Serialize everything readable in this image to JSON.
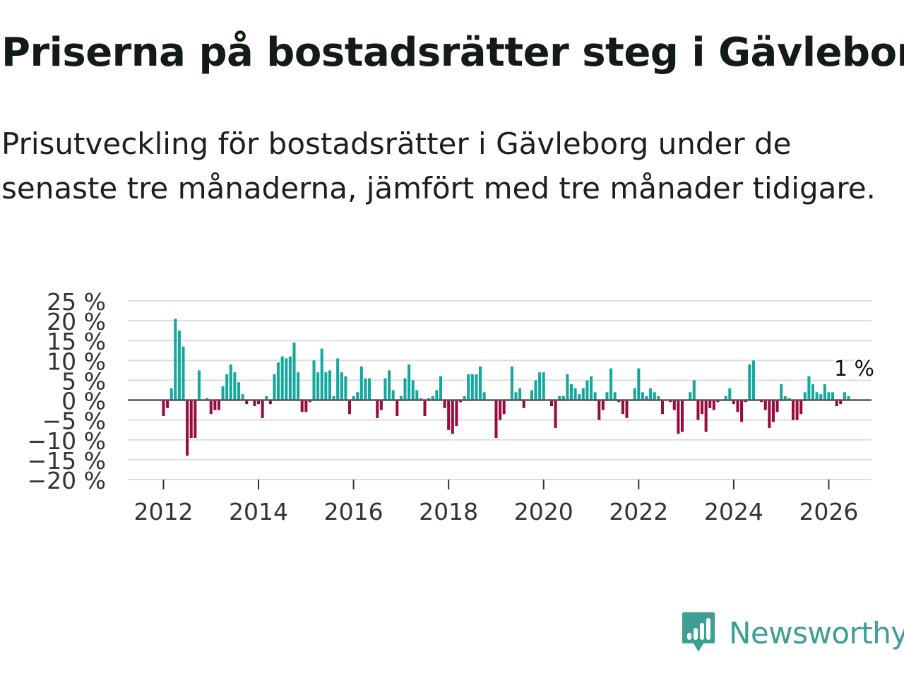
{
  "title": "Priserna på bostadsrätter steg i Gävleborg",
  "subtitle": "Prisutveckling för bostadsrätter i Gävleborg under de senaste tre månaderna, jämfört med tre månader tidigare.",
  "brand": {
    "name": "Newsworthy",
    "color": "#3d9e94"
  },
  "colors": {
    "positive": "#13a89e",
    "negative": "#990a3e",
    "grid": "#dddddd",
    "zero_line": "#555555"
  },
  "chart_data": {
    "type": "bar",
    "title": "Priserna på bostadsrätter steg i Gävleborg",
    "xlabel": "",
    "ylabel": "",
    "ylim": [
      -20,
      25
    ],
    "xlim": [
      2011.25,
      2026.9
    ],
    "y_ticks": [
      -20,
      -15,
      -10,
      -5,
      0,
      5,
      10,
      15,
      20,
      25
    ],
    "y_tick_labels": [
      "−20 %",
      "−15 %",
      "−10 %",
      "−5 %",
      "0 %",
      "5 %",
      "10 %",
      "15 %",
      "20 %",
      "25 %"
    ],
    "x_ticks": [
      2012,
      2014,
      2016,
      2018,
      2020,
      2022,
      2024,
      2026
    ],
    "x_tick_labels": [
      "2012",
      "2014",
      "2016",
      "2018",
      "2020",
      "2022",
      "2024",
      "2026"
    ],
    "start": [
      2012,
      1
    ],
    "annotation": "1 %",
    "values": [
      -4,
      -2,
      3,
      20.5,
      17.5,
      13.5,
      -14,
      -9.5,
      -9.5,
      7.5,
      0,
      0.5,
      -3.5,
      -2.5,
      -2.5,
      3.5,
      6.5,
      9,
      7,
      4.5,
      1.5,
      -1,
      0,
      -1.5,
      -1,
      -4.5,
      1,
      -1,
      6.5,
      9.5,
      11,
      10.5,
      11,
      14.5,
      7,
      -3,
      -3,
      -0.5,
      10,
      7,
      13,
      7,
      7.5,
      1,
      10.5,
      7,
      6,
      -3.5,
      1,
      2,
      8.5,
      5.5,
      5.5,
      0,
      -4.5,
      -2.5,
      5.5,
      7.5,
      2.5,
      -4,
      1,
      5.5,
      9,
      5,
      2.5,
      0.5,
      -4,
      0.5,
      1,
      2.5,
      6,
      -2,
      -7.5,
      -8.5,
      -6.5,
      -0.5,
      1,
      6.5,
      6.5,
      6.5,
      8.5,
      2,
      0,
      0,
      -9.5,
      -5,
      -3.5,
      0,
      8.5,
      2,
      3,
      -2,
      0,
      2.5,
      5,
      7,
      7,
      0,
      -1.5,
      -7,
      1,
      1,
      6.5,
      4,
      3,
      1.5,
      3,
      5,
      6,
      2,
      -5,
      -2.5,
      2,
      8,
      2,
      -0.5,
      -3.5,
      -4.5,
      0,
      3,
      8,
      2,
      1,
      3,
      2,
      1,
      -3.5,
      0,
      -0.5,
      -2.5,
      -8.5,
      -8,
      0,
      2,
      5,
      -5,
      -3.5,
      -8,
      -2,
      -2.5,
      -0.5,
      0,
      1,
      3,
      -1,
      -3,
      -5.5,
      -0.5,
      9,
      10,
      0,
      -0.5,
      -2.5,
      -7,
      -5.5,
      -3,
      4,
      1,
      0.5,
      -5,
      -5,
      -3.5,
      2,
      6,
      4,
      2,
      1.5,
      4,
      2,
      2,
      -1.5,
      -1,
      2,
      1
    ]
  }
}
